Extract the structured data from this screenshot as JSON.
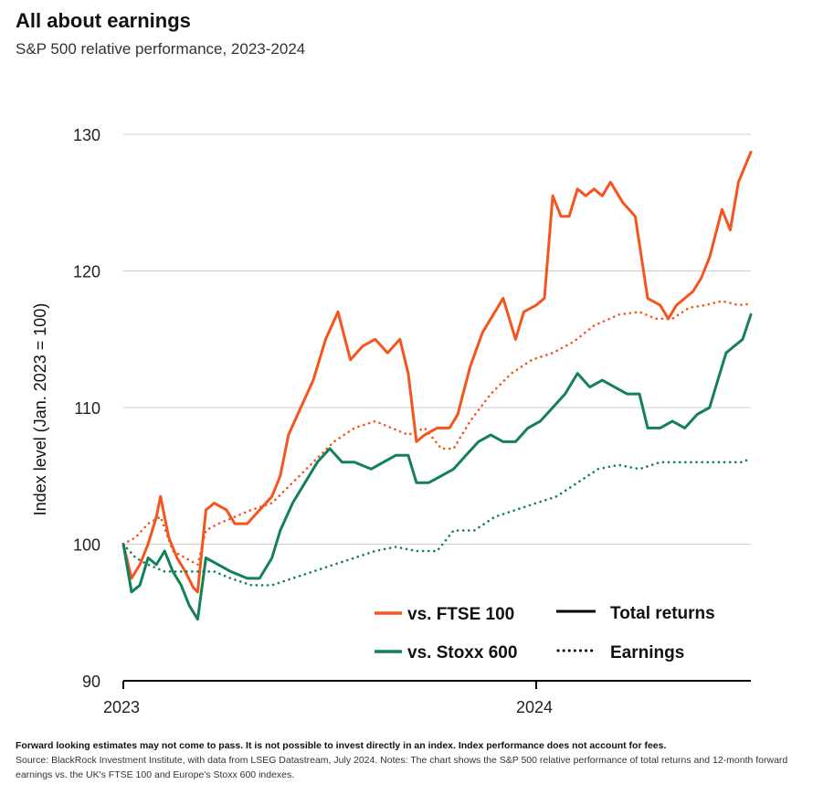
{
  "header": {
    "title": "All about earnings",
    "subtitle": "S&P 500 relative performance, 2023-2024"
  },
  "footer": {
    "disclaimer": "Forward looking estimates may not come to pass. It is not possible to invest directly in an index. Index performance does not account for fees.",
    "source": "Source: BlackRock Investment Institute, with data from LSEG Datastream, July 2024. Notes: The chart shows the S&P 500 relative performance of total returns and 12-month forward earnings vs. the UK's FTSE 100 and Europe's Stoxx 600 indexes."
  },
  "chart_data": {
    "type": "line",
    "ylabel": "Index level (Jan. 2023 = 100)",
    "xlabel": "",
    "ylim": [
      90,
      130
    ],
    "yticks": [
      90,
      100,
      110,
      120,
      130
    ],
    "xlim": [
      2023.0,
      2024.52
    ],
    "xticks": [
      {
        "value": 2023.0,
        "label": "2023"
      },
      {
        "value": 2024.0,
        "label": "2024"
      }
    ],
    "grid": true,
    "legend": {
      "placement": "bottom-right",
      "series_labels": [
        "vs. FTSE 100",
        "vs. Stoxx 600"
      ],
      "style_labels": [
        "Total returns",
        "Earnings"
      ]
    },
    "colors": {
      "ftse": "#f5541f",
      "stoxx": "#138059"
    },
    "series": [
      {
        "name": "vs. FTSE 100",
        "style": "Total returns",
        "color": "#f5541f",
        "points": [
          [
            2023.0,
            100
          ],
          [
            2023.02,
            97.5
          ],
          [
            2023.04,
            98.5
          ],
          [
            2023.06,
            100
          ],
          [
            2023.08,
            102
          ],
          [
            2023.09,
            103.5
          ],
          [
            2023.11,
            100.5
          ],
          [
            2023.13,
            99
          ],
          [
            2023.15,
            98
          ],
          [
            2023.17,
            96.8
          ],
          [
            2023.18,
            96.5
          ],
          [
            2023.2,
            102.5
          ],
          [
            2023.22,
            103
          ],
          [
            2023.25,
            102.5
          ],
          [
            2023.27,
            101.5
          ],
          [
            2023.3,
            101.5
          ],
          [
            2023.33,
            102.5
          ],
          [
            2023.36,
            103.5
          ],
          [
            2023.38,
            105
          ],
          [
            2023.4,
            108
          ],
          [
            2023.43,
            110
          ],
          [
            2023.46,
            112
          ],
          [
            2023.49,
            115
          ],
          [
            2023.52,
            117
          ],
          [
            2023.55,
            113.5
          ],
          [
            2023.58,
            114.5
          ],
          [
            2023.61,
            115
          ],
          [
            2023.64,
            114
          ],
          [
            2023.67,
            115
          ],
          [
            2023.69,
            112.5
          ],
          [
            2023.71,
            107.5
          ],
          [
            2023.73,
            108
          ],
          [
            2023.76,
            108.5
          ],
          [
            2023.79,
            108.5
          ],
          [
            2023.81,
            109.5
          ],
          [
            2023.84,
            113
          ],
          [
            2023.87,
            115.5
          ],
          [
            2023.9,
            117
          ],
          [
            2023.92,
            118
          ],
          [
            2023.95,
            115
          ],
          [
            2023.97,
            117
          ],
          [
            2024.0,
            117.5
          ],
          [
            2024.02,
            118
          ],
          [
            2024.04,
            125.5
          ],
          [
            2024.06,
            124
          ],
          [
            2024.08,
            124
          ],
          [
            2024.1,
            126
          ],
          [
            2024.12,
            125.5
          ],
          [
            2024.14,
            126
          ],
          [
            2024.16,
            125.5
          ],
          [
            2024.18,
            126.5
          ],
          [
            2024.21,
            125
          ],
          [
            2024.24,
            124
          ],
          [
            2024.27,
            118
          ],
          [
            2024.3,
            117.5
          ],
          [
            2024.32,
            116.5
          ],
          [
            2024.34,
            117.5
          ],
          [
            2024.36,
            118
          ],
          [
            2024.38,
            118.5
          ],
          [
            2024.4,
            119.5
          ],
          [
            2024.42,
            121
          ],
          [
            2024.45,
            124.5
          ],
          [
            2024.47,
            123
          ],
          [
            2024.49,
            126.5
          ],
          [
            2024.52,
            128.7
          ]
        ]
      },
      {
        "name": "vs. FTSE 100",
        "style": "Earnings",
        "color": "#f5541f",
        "points": [
          [
            2023.0,
            100
          ],
          [
            2023.03,
            100.5
          ],
          [
            2023.06,
            101.5
          ],
          [
            2023.09,
            102
          ],
          [
            2023.12,
            99.5
          ],
          [
            2023.15,
            99
          ],
          [
            2023.18,
            98.5
          ],
          [
            2023.2,
            101
          ],
          [
            2023.23,
            101.5
          ],
          [
            2023.27,
            102
          ],
          [
            2023.31,
            102.5
          ],
          [
            2023.36,
            103
          ],
          [
            2023.41,
            104.5
          ],
          [
            2023.46,
            106
          ],
          [
            2023.51,
            107.5
          ],
          [
            2023.56,
            108.5
          ],
          [
            2023.61,
            109
          ],
          [
            2023.65,
            108.5
          ],
          [
            2023.69,
            108
          ],
          [
            2023.73,
            108.5
          ],
          [
            2023.77,
            107
          ],
          [
            2023.8,
            107
          ],
          [
            2023.84,
            109
          ],
          [
            2023.89,
            111
          ],
          [
            2023.94,
            112.5
          ],
          [
            2023.99,
            113.5
          ],
          [
            2024.04,
            114
          ],
          [
            2024.09,
            114.8
          ],
          [
            2024.14,
            116
          ],
          [
            2024.2,
            116.8
          ],
          [
            2024.25,
            117
          ],
          [
            2024.29,
            116.5
          ],
          [
            2024.33,
            116.5
          ],
          [
            2024.37,
            117.3
          ],
          [
            2024.41,
            117.5
          ],
          [
            2024.45,
            117.8
          ],
          [
            2024.49,
            117.5
          ],
          [
            2024.52,
            117.6
          ]
        ]
      },
      {
        "name": "vs. Stoxx 600",
        "style": "Total returns",
        "color": "#138059",
        "points": [
          [
            2023.0,
            100
          ],
          [
            2023.02,
            96.5
          ],
          [
            2023.04,
            97
          ],
          [
            2023.06,
            99
          ],
          [
            2023.08,
            98.5
          ],
          [
            2023.1,
            99.5
          ],
          [
            2023.12,
            98
          ],
          [
            2023.14,
            97
          ],
          [
            2023.16,
            95.5
          ],
          [
            2023.18,
            94.5
          ],
          [
            2023.2,
            99
          ],
          [
            2023.23,
            98.5
          ],
          [
            2023.26,
            98
          ],
          [
            2023.3,
            97.5
          ],
          [
            2023.33,
            97.5
          ],
          [
            2023.36,
            99
          ],
          [
            2023.38,
            101
          ],
          [
            2023.41,
            103
          ],
          [
            2023.44,
            104.5
          ],
          [
            2023.47,
            106
          ],
          [
            2023.5,
            107
          ],
          [
            2023.53,
            106
          ],
          [
            2023.56,
            106
          ],
          [
            2023.6,
            105.5
          ],
          [
            2023.63,
            106
          ],
          [
            2023.66,
            106.5
          ],
          [
            2023.69,
            106.5
          ],
          [
            2023.71,
            104.5
          ],
          [
            2023.74,
            104.5
          ],
          [
            2023.77,
            105
          ],
          [
            2023.8,
            105.5
          ],
          [
            2023.83,
            106.5
          ],
          [
            2023.86,
            107.5
          ],
          [
            2023.89,
            108
          ],
          [
            2023.92,
            107.5
          ],
          [
            2023.95,
            107.5
          ],
          [
            2023.98,
            108.5
          ],
          [
            2024.01,
            109
          ],
          [
            2024.04,
            110
          ],
          [
            2024.07,
            111
          ],
          [
            2024.1,
            112.5
          ],
          [
            2024.13,
            111.5
          ],
          [
            2024.16,
            112
          ],
          [
            2024.19,
            111.5
          ],
          [
            2024.22,
            111
          ],
          [
            2024.25,
            111
          ],
          [
            2024.27,
            108.5
          ],
          [
            2024.3,
            108.5
          ],
          [
            2024.33,
            109
          ],
          [
            2024.36,
            108.5
          ],
          [
            2024.39,
            109.5
          ],
          [
            2024.42,
            110
          ],
          [
            2024.44,
            112
          ],
          [
            2024.46,
            114
          ],
          [
            2024.48,
            114.5
          ],
          [
            2024.5,
            115
          ],
          [
            2024.52,
            116.8
          ]
        ]
      },
      {
        "name": "vs. Stoxx 600",
        "style": "Earnings",
        "color": "#138059",
        "points": [
          [
            2023.0,
            100
          ],
          [
            2023.03,
            99
          ],
          [
            2023.06,
            98.5
          ],
          [
            2023.1,
            98
          ],
          [
            2023.14,
            98
          ],
          [
            2023.18,
            98
          ],
          [
            2023.22,
            98
          ],
          [
            2023.26,
            97.5
          ],
          [
            2023.31,
            97
          ],
          [
            2023.36,
            97
          ],
          [
            2023.41,
            97.5
          ],
          [
            2023.46,
            98
          ],
          [
            2023.51,
            98.5
          ],
          [
            2023.56,
            99
          ],
          [
            2023.61,
            99.5
          ],
          [
            2023.66,
            99.8
          ],
          [
            2023.71,
            99.5
          ],
          [
            2023.76,
            99.5
          ],
          [
            2023.8,
            101
          ],
          [
            2023.85,
            101
          ],
          [
            2023.9,
            102
          ],
          [
            2023.95,
            102.5
          ],
          [
            2024.0,
            103
          ],
          [
            2024.05,
            103.5
          ],
          [
            2024.1,
            104.5
          ],
          [
            2024.15,
            105.5
          ],
          [
            2024.2,
            105.8
          ],
          [
            2024.25,
            105.5
          ],
          [
            2024.3,
            106
          ],
          [
            2024.35,
            106
          ],
          [
            2024.4,
            106
          ],
          [
            2024.45,
            106
          ],
          [
            2024.5,
            106
          ],
          [
            2024.52,
            106.3
          ]
        ]
      }
    ]
  }
}
